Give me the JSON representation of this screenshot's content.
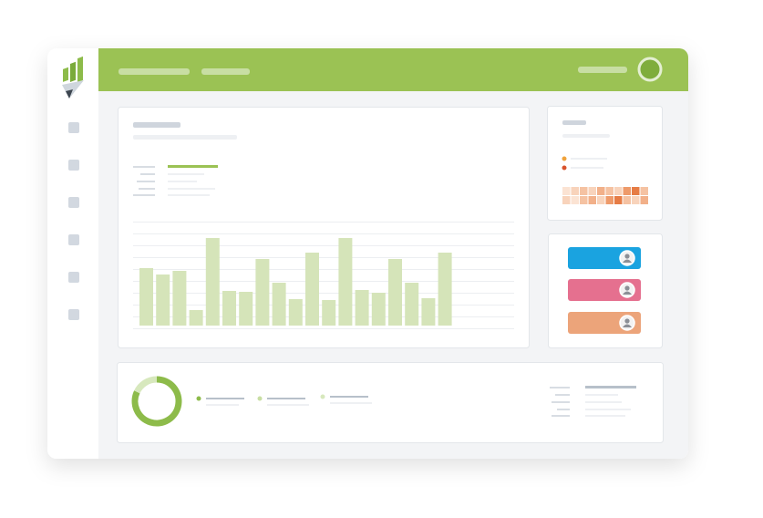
{
  "chart_data": [
    {
      "type": "bar",
      "values": [
        63,
        56,
        60,
        17,
        96,
        38,
        37,
        73,
        47,
        29,
        80,
        28,
        96,
        39,
        36,
        73,
        47,
        30,
        80
      ],
      "color": "#d5e4b9",
      "ylim": [
        0,
        100
      ]
    },
    {
      "type": "donut",
      "values": [
        82,
        18
      ],
      "colors": [
        "#8dbb4a",
        "#d7e8bd"
      ]
    }
  ]
}
